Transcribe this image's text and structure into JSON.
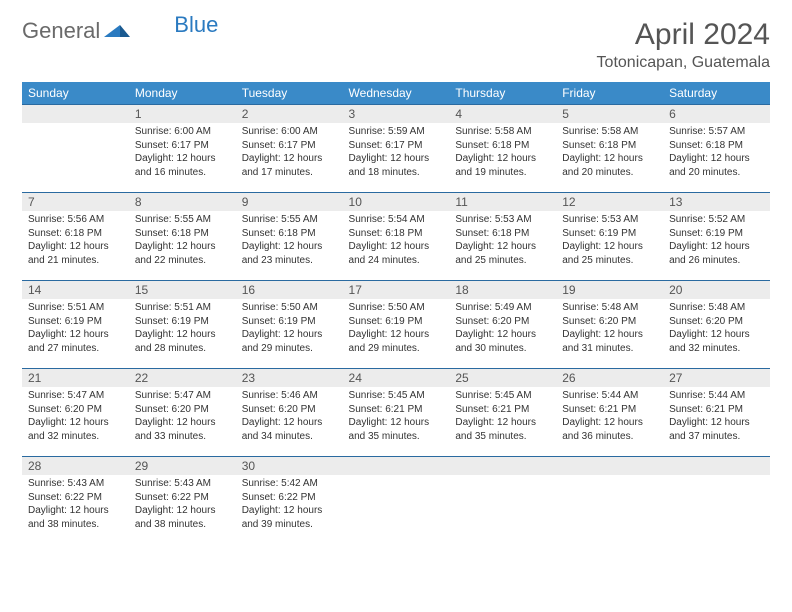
{
  "brand": {
    "part1": "General",
    "part2": "Blue"
  },
  "title": "April 2024",
  "location": "Totonicapan, Guatemala",
  "header_bg": "#3a8ac8",
  "weekdays": [
    "Sunday",
    "Monday",
    "Tuesday",
    "Wednesday",
    "Thursday",
    "Friday",
    "Saturday"
  ],
  "weeks": [
    [
      {
        "day": "",
        "sunrise": "",
        "sunset": "",
        "daylight": ""
      },
      {
        "day": "1",
        "sunrise": "Sunrise: 6:00 AM",
        "sunset": "Sunset: 6:17 PM",
        "daylight": "Daylight: 12 hours and 16 minutes."
      },
      {
        "day": "2",
        "sunrise": "Sunrise: 6:00 AM",
        "sunset": "Sunset: 6:17 PM",
        "daylight": "Daylight: 12 hours and 17 minutes."
      },
      {
        "day": "3",
        "sunrise": "Sunrise: 5:59 AM",
        "sunset": "Sunset: 6:17 PM",
        "daylight": "Daylight: 12 hours and 18 minutes."
      },
      {
        "day": "4",
        "sunrise": "Sunrise: 5:58 AM",
        "sunset": "Sunset: 6:18 PM",
        "daylight": "Daylight: 12 hours and 19 minutes."
      },
      {
        "day": "5",
        "sunrise": "Sunrise: 5:58 AM",
        "sunset": "Sunset: 6:18 PM",
        "daylight": "Daylight: 12 hours and 20 minutes."
      },
      {
        "day": "6",
        "sunrise": "Sunrise: 5:57 AM",
        "sunset": "Sunset: 6:18 PM",
        "daylight": "Daylight: 12 hours and 20 minutes."
      }
    ],
    [
      {
        "day": "7",
        "sunrise": "Sunrise: 5:56 AM",
        "sunset": "Sunset: 6:18 PM",
        "daylight": "Daylight: 12 hours and 21 minutes."
      },
      {
        "day": "8",
        "sunrise": "Sunrise: 5:55 AM",
        "sunset": "Sunset: 6:18 PM",
        "daylight": "Daylight: 12 hours and 22 minutes."
      },
      {
        "day": "9",
        "sunrise": "Sunrise: 5:55 AM",
        "sunset": "Sunset: 6:18 PM",
        "daylight": "Daylight: 12 hours and 23 minutes."
      },
      {
        "day": "10",
        "sunrise": "Sunrise: 5:54 AM",
        "sunset": "Sunset: 6:18 PM",
        "daylight": "Daylight: 12 hours and 24 minutes."
      },
      {
        "day": "11",
        "sunrise": "Sunrise: 5:53 AM",
        "sunset": "Sunset: 6:18 PM",
        "daylight": "Daylight: 12 hours and 25 minutes."
      },
      {
        "day": "12",
        "sunrise": "Sunrise: 5:53 AM",
        "sunset": "Sunset: 6:19 PM",
        "daylight": "Daylight: 12 hours and 25 minutes."
      },
      {
        "day": "13",
        "sunrise": "Sunrise: 5:52 AM",
        "sunset": "Sunset: 6:19 PM",
        "daylight": "Daylight: 12 hours and 26 minutes."
      }
    ],
    [
      {
        "day": "14",
        "sunrise": "Sunrise: 5:51 AM",
        "sunset": "Sunset: 6:19 PM",
        "daylight": "Daylight: 12 hours and 27 minutes."
      },
      {
        "day": "15",
        "sunrise": "Sunrise: 5:51 AM",
        "sunset": "Sunset: 6:19 PM",
        "daylight": "Daylight: 12 hours and 28 minutes."
      },
      {
        "day": "16",
        "sunrise": "Sunrise: 5:50 AM",
        "sunset": "Sunset: 6:19 PM",
        "daylight": "Daylight: 12 hours and 29 minutes."
      },
      {
        "day": "17",
        "sunrise": "Sunrise: 5:50 AM",
        "sunset": "Sunset: 6:19 PM",
        "daylight": "Daylight: 12 hours and 29 minutes."
      },
      {
        "day": "18",
        "sunrise": "Sunrise: 5:49 AM",
        "sunset": "Sunset: 6:20 PM",
        "daylight": "Daylight: 12 hours and 30 minutes."
      },
      {
        "day": "19",
        "sunrise": "Sunrise: 5:48 AM",
        "sunset": "Sunset: 6:20 PM",
        "daylight": "Daylight: 12 hours and 31 minutes."
      },
      {
        "day": "20",
        "sunrise": "Sunrise: 5:48 AM",
        "sunset": "Sunset: 6:20 PM",
        "daylight": "Daylight: 12 hours and 32 minutes."
      }
    ],
    [
      {
        "day": "21",
        "sunrise": "Sunrise: 5:47 AM",
        "sunset": "Sunset: 6:20 PM",
        "daylight": "Daylight: 12 hours and 32 minutes."
      },
      {
        "day": "22",
        "sunrise": "Sunrise: 5:47 AM",
        "sunset": "Sunset: 6:20 PM",
        "daylight": "Daylight: 12 hours and 33 minutes."
      },
      {
        "day": "23",
        "sunrise": "Sunrise: 5:46 AM",
        "sunset": "Sunset: 6:20 PM",
        "daylight": "Daylight: 12 hours and 34 minutes."
      },
      {
        "day": "24",
        "sunrise": "Sunrise: 5:45 AM",
        "sunset": "Sunset: 6:21 PM",
        "daylight": "Daylight: 12 hours and 35 minutes."
      },
      {
        "day": "25",
        "sunrise": "Sunrise: 5:45 AM",
        "sunset": "Sunset: 6:21 PM",
        "daylight": "Daylight: 12 hours and 35 minutes."
      },
      {
        "day": "26",
        "sunrise": "Sunrise: 5:44 AM",
        "sunset": "Sunset: 6:21 PM",
        "daylight": "Daylight: 12 hours and 36 minutes."
      },
      {
        "day": "27",
        "sunrise": "Sunrise: 5:44 AM",
        "sunset": "Sunset: 6:21 PM",
        "daylight": "Daylight: 12 hours and 37 minutes."
      }
    ],
    [
      {
        "day": "28",
        "sunrise": "Sunrise: 5:43 AM",
        "sunset": "Sunset: 6:22 PM",
        "daylight": "Daylight: 12 hours and 38 minutes."
      },
      {
        "day": "29",
        "sunrise": "Sunrise: 5:43 AM",
        "sunset": "Sunset: 6:22 PM",
        "daylight": "Daylight: 12 hours and 38 minutes."
      },
      {
        "day": "30",
        "sunrise": "Sunrise: 5:42 AM",
        "sunset": "Sunset: 6:22 PM",
        "daylight": "Daylight: 12 hours and 39 minutes."
      },
      {
        "day": "",
        "sunrise": "",
        "sunset": "",
        "daylight": ""
      },
      {
        "day": "",
        "sunrise": "",
        "sunset": "",
        "daylight": ""
      },
      {
        "day": "",
        "sunrise": "",
        "sunset": "",
        "daylight": ""
      },
      {
        "day": "",
        "sunrise": "",
        "sunset": "",
        "daylight": ""
      }
    ]
  ]
}
